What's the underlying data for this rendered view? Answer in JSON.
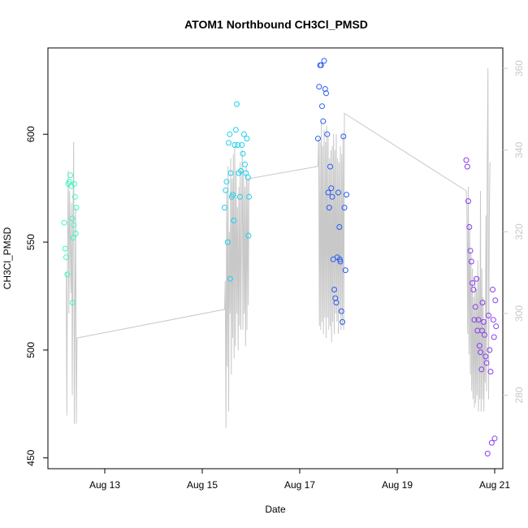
{
  "chart_data": {
    "type": "scatter",
    "title": "ATOM1 Northbound CH3Cl_PMSD",
    "xlabel": "Date",
    "ylabel": "CH3Cl_PMSD",
    "x_unit": "date",
    "xlim": [
      "2023-08-11T20:00",
      "2023-08-21T04:00"
    ],
    "ylim": [
      445,
      640
    ],
    "y2lim": [
      262,
      365
    ],
    "x_ticks": [
      {
        "value": "2023-08-13",
        "label": "Aug 13"
      },
      {
        "value": "2023-08-15",
        "label": "Aug 15"
      },
      {
        "value": "2023-08-17",
        "label": "Aug 17"
      },
      {
        "value": "2023-08-19",
        "label": "Aug 19"
      },
      {
        "value": "2023-08-21",
        "label": "Aug 21"
      }
    ],
    "y_ticks": [
      450,
      500,
      550,
      600
    ],
    "y2_ticks": [
      280,
      300,
      320,
      340,
      360
    ],
    "point_style": "open circles colored by time (cyan to purple)",
    "line_style": "gray line on secondary axis",
    "grid": false,
    "series": [
      {
        "color": "#3df7c3",
        "points": [
          {
            "x": "2023-08-12T04:00",
            "y": 559
          },
          {
            "x": "2023-08-12T04:30",
            "y": 547
          },
          {
            "x": "2023-08-12T05:00",
            "y": 543
          },
          {
            "x": "2023-08-12T05:30",
            "y": 535
          },
          {
            "x": "2023-08-12T06:00",
            "y": 577
          },
          {
            "x": "2023-08-12T06:30",
            "y": 578
          },
          {
            "x": "2023-08-12T07:00",
            "y": 581
          },
          {
            "x": "2023-08-12T07:30",
            "y": 576
          },
          {
            "x": "2023-08-12T08:00",
            "y": 561
          },
          {
            "x": "2023-08-12T08:20",
            "y": 552
          },
          {
            "x": "2023-08-12T08:40",
            "y": 558
          },
          {
            "x": "2023-08-12T09:00",
            "y": 577
          },
          {
            "x": "2023-08-12T09:20",
            "y": 571
          },
          {
            "x": "2023-08-12T09:40",
            "y": 554
          },
          {
            "x": "2023-08-12T10:00",
            "y": 566
          },
          {
            "x": "2023-08-12T08:10",
            "y": 522
          }
        ]
      },
      {
        "color": "#1ed0ee",
        "points": [
          {
            "x": "2023-08-15T11:00",
            "y": 566
          },
          {
            "x": "2023-08-15T11:30",
            "y": 574
          },
          {
            "x": "2023-08-15T12:00",
            "y": 578
          },
          {
            "x": "2023-08-15T12:30",
            "y": 550
          },
          {
            "x": "2023-08-15T13:00",
            "y": 596
          },
          {
            "x": "2023-08-15T13:30",
            "y": 600
          },
          {
            "x": "2023-08-15T14:00",
            "y": 582
          },
          {
            "x": "2023-08-15T14:30",
            "y": 571
          },
          {
            "x": "2023-08-15T15:00",
            "y": 572
          },
          {
            "x": "2023-08-15T15:30",
            "y": 560
          },
          {
            "x": "2023-08-15T16:00",
            "y": 595
          },
          {
            "x": "2023-08-15T16:30",
            "y": 602
          },
          {
            "x": "2023-08-15T17:00",
            "y": 614
          },
          {
            "x": "2023-08-15T17:30",
            "y": 595
          },
          {
            "x": "2023-08-15T18:00",
            "y": 582
          },
          {
            "x": "2023-08-15T18:30",
            "y": 571
          },
          {
            "x": "2023-08-15T19:00",
            "y": 583
          },
          {
            "x": "2023-08-15T19:30",
            "y": 595
          },
          {
            "x": "2023-08-15T20:00",
            "y": 591
          },
          {
            "x": "2023-08-15T20:30",
            "y": 600
          },
          {
            "x": "2023-08-15T21:00",
            "y": 586
          },
          {
            "x": "2023-08-15T21:30",
            "y": 582
          },
          {
            "x": "2023-08-15T22:00",
            "y": 598
          },
          {
            "x": "2023-08-15T22:30",
            "y": 580
          },
          {
            "x": "2023-08-15T23:00",
            "y": 571
          },
          {
            "x": "2023-08-15T22:45",
            "y": 553
          },
          {
            "x": "2023-08-15T13:45",
            "y": 533
          }
        ]
      },
      {
        "color": "#2a5cf0",
        "points": [
          {
            "x": "2023-08-17T09:00",
            "y": 598
          },
          {
            "x": "2023-08-17T09:30",
            "y": 622
          },
          {
            "x": "2023-08-17T10:00",
            "y": 632
          },
          {
            "x": "2023-08-17T10:30",
            "y": 632
          },
          {
            "x": "2023-08-17T11:00",
            "y": 613
          },
          {
            "x": "2023-08-17T11:30",
            "y": 606
          },
          {
            "x": "2023-08-17T12:00",
            "y": 634
          },
          {
            "x": "2023-08-17T12:30",
            "y": 621
          },
          {
            "x": "2023-08-17T13:00",
            "y": 619
          },
          {
            "x": "2023-08-17T13:30",
            "y": 600
          },
          {
            "x": "2023-08-17T14:00",
            "y": 573
          },
          {
            "x": "2023-08-17T14:30",
            "y": 566
          },
          {
            "x": "2023-08-17T15:00",
            "y": 585
          },
          {
            "x": "2023-08-17T15:30",
            "y": 575
          },
          {
            "x": "2023-08-17T16:00",
            "y": 571
          },
          {
            "x": "2023-08-17T16:30",
            "y": 542
          },
          {
            "x": "2023-08-17T17:00",
            "y": 528
          },
          {
            "x": "2023-08-17T17:30",
            "y": 524
          },
          {
            "x": "2023-08-17T18:00",
            "y": 522
          },
          {
            "x": "2023-08-17T18:30",
            "y": 543
          },
          {
            "x": "2023-08-17T19:00",
            "y": 573
          },
          {
            "x": "2023-08-17T19:30",
            "y": 557
          },
          {
            "x": "2023-08-17T20:00",
            "y": 541
          },
          {
            "x": "2023-08-17T20:30",
            "y": 518
          },
          {
            "x": "2023-08-17T21:00",
            "y": 513
          },
          {
            "x": "2023-08-17T21:30",
            "y": 599
          },
          {
            "x": "2023-08-17T22:00",
            "y": 566
          },
          {
            "x": "2023-08-17T22:30",
            "y": 537
          },
          {
            "x": "2023-08-17T23:00",
            "y": 572
          },
          {
            "x": "2023-08-17T19:45",
            "y": 542
          }
        ]
      },
      {
        "color": "#8a3cf0",
        "points": [
          {
            "x": "2023-08-20T10:00",
            "y": 588
          },
          {
            "x": "2023-08-20T10:30",
            "y": 585
          },
          {
            "x": "2023-08-20T11:00",
            "y": 569
          },
          {
            "x": "2023-08-20T11:30",
            "y": 557
          },
          {
            "x": "2023-08-20T12:00",
            "y": 546
          },
          {
            "x": "2023-08-20T12:30",
            "y": 541
          },
          {
            "x": "2023-08-20T13:00",
            "y": 531
          },
          {
            "x": "2023-08-20T13:30",
            "y": 528
          },
          {
            "x": "2023-08-20T14:00",
            "y": 514
          },
          {
            "x": "2023-08-20T14:30",
            "y": 520
          },
          {
            "x": "2023-08-20T15:00",
            "y": 533
          },
          {
            "x": "2023-08-20T15:30",
            "y": 509
          },
          {
            "x": "2023-08-20T16:00",
            "y": 514
          },
          {
            "x": "2023-08-20T16:30",
            "y": 502
          },
          {
            "x": "2023-08-20T17:00",
            "y": 499
          },
          {
            "x": "2023-08-20T17:30",
            "y": 491
          },
          {
            "x": "2023-08-20T18:00",
            "y": 522
          },
          {
            "x": "2023-08-20T18:30",
            "y": 513
          },
          {
            "x": "2023-08-20T19:00",
            "y": 507
          },
          {
            "x": "2023-08-20T19:30",
            "y": 497
          },
          {
            "x": "2023-08-20T20:00",
            "y": 494
          },
          {
            "x": "2023-08-20T20:30",
            "y": 452
          },
          {
            "x": "2023-08-20T21:00",
            "y": 516
          },
          {
            "x": "2023-08-20T21:30",
            "y": 500
          },
          {
            "x": "2023-08-20T22:00",
            "y": 490
          },
          {
            "x": "2023-08-20T22:30",
            "y": 457
          },
          {
            "x": "2023-08-20T23:00",
            "y": 528
          },
          {
            "x": "2023-08-20T23:20",
            "y": 514
          },
          {
            "x": "2023-08-20T23:40",
            "y": 506
          },
          {
            "x": "2023-08-21T00:00",
            "y": 459
          },
          {
            "x": "2023-08-21T00:20",
            "y": 523
          },
          {
            "x": "2023-08-21T00:40",
            "y": 511
          },
          {
            "x": "2023-08-20T17:45",
            "y": 509
          }
        ]
      }
    ],
    "secondary_line": {
      "color": "#c8c8c8",
      "points": [
        {
          "x": "2023-08-12T05:00",
          "y": 310
        },
        {
          "x": "2023-08-12T05:20",
          "y": 275
        },
        {
          "x": "2023-08-12T05:40",
          "y": 318
        },
        {
          "x": "2023-08-12T06:00",
          "y": 335
        },
        {
          "x": "2023-08-12T06:20",
          "y": 300
        },
        {
          "x": "2023-08-12T06:40",
          "y": 330
        },
        {
          "x": "2023-08-12T07:00",
          "y": 318
        },
        {
          "x": "2023-08-12T07:20",
          "y": 305
        },
        {
          "x": "2023-08-12T07:40",
          "y": 327
        },
        {
          "x": "2023-08-12T08:00",
          "y": 280
        },
        {
          "x": "2023-08-12T08:20",
          "y": 322
        },
        {
          "x": "2023-08-12T08:40",
          "y": 342
        },
        {
          "x": "2023-08-12T09:00",
          "y": 273
        },
        {
          "x": "2023-08-12T09:20",
          "y": 300
        },
        {
          "x": "2023-08-12T09:40",
          "y": 326
        },
        {
          "x": "2023-08-12T10:00",
          "y": 273
        },
        {
          "x": "2023-08-12T10:20",
          "y": 294
        },
        {
          "x": "2023-08-15T11:00",
          "y": 301
        },
        {
          "x": "2023-08-15T11:20",
          "y": 308
        },
        {
          "x": "2023-08-15T11:40",
          "y": 272
        },
        {
          "x": "2023-08-15T12:00",
          "y": 330
        },
        {
          "x": "2023-08-15T12:20",
          "y": 287
        },
        {
          "x": "2023-08-15T12:40",
          "y": 336
        },
        {
          "x": "2023-08-15T13:00",
          "y": 276
        },
        {
          "x": "2023-08-15T13:20",
          "y": 320
        },
        {
          "x": "2023-08-15T13:40",
          "y": 300
        },
        {
          "x": "2023-08-15T14:00",
          "y": 338
        },
        {
          "x": "2023-08-15T14:20",
          "y": 285
        },
        {
          "x": "2023-08-15T14:40",
          "y": 333
        },
        {
          "x": "2023-08-15T15:00",
          "y": 294
        },
        {
          "x": "2023-08-15T15:20",
          "y": 339
        },
        {
          "x": "2023-08-15T15:40",
          "y": 289
        },
        {
          "x": "2023-08-15T16:00",
          "y": 341
        },
        {
          "x": "2023-08-15T16:20",
          "y": 292
        },
        {
          "x": "2023-08-15T16:40",
          "y": 335
        },
        {
          "x": "2023-08-15T17:00",
          "y": 300
        },
        {
          "x": "2023-08-15T17:20",
          "y": 326
        },
        {
          "x": "2023-08-15T17:40",
          "y": 291
        },
        {
          "x": "2023-08-15T18:00",
          "y": 331
        },
        {
          "x": "2023-08-15T18:20",
          "y": 297
        },
        {
          "x": "2023-08-15T18:40",
          "y": 337
        },
        {
          "x": "2023-08-15T19:00",
          "y": 296
        },
        {
          "x": "2023-08-15T19:20",
          "y": 320
        },
        {
          "x": "2023-08-15T19:40",
          "y": 340
        },
        {
          "x": "2023-08-15T20:00",
          "y": 296
        },
        {
          "x": "2023-08-15T20:20",
          "y": 334
        },
        {
          "x": "2023-08-15T20:40",
          "y": 300
        },
        {
          "x": "2023-08-15T21:00",
          "y": 331
        },
        {
          "x": "2023-08-15T21:20",
          "y": 292
        },
        {
          "x": "2023-08-15T21:40",
          "y": 336
        },
        {
          "x": "2023-08-15T22:00",
          "y": 296
        },
        {
          "x": "2023-08-15T22:20",
          "y": 333
        },
        {
          "x": "2023-08-15T22:40",
          "y": 302
        },
        {
          "x": "2023-08-15T23:00",
          "y": 333
        },
        {
          "x": "2023-08-17T09:00",
          "y": 336
        },
        {
          "x": "2023-08-17T09:20",
          "y": 343
        },
        {
          "x": "2023-08-17T09:40",
          "y": 297
        },
        {
          "x": "2023-08-17T10:00",
          "y": 342
        },
        {
          "x": "2023-08-17T10:20",
          "y": 296
        },
        {
          "x": "2023-08-17T10:40",
          "y": 347
        },
        {
          "x": "2023-08-17T11:00",
          "y": 298
        },
        {
          "x": "2023-08-17T11:20",
          "y": 341
        },
        {
          "x": "2023-08-17T11:40",
          "y": 295
        },
        {
          "x": "2023-08-17T12:00",
          "y": 345
        },
        {
          "x": "2023-08-17T12:20",
          "y": 299
        },
        {
          "x": "2023-08-17T12:40",
          "y": 342
        },
        {
          "x": "2023-08-17T13:00",
          "y": 294
        },
        {
          "x": "2023-08-17T13:20",
          "y": 346
        },
        {
          "x": "2023-08-17T13:40",
          "y": 299
        },
        {
          "x": "2023-08-17T14:00",
          "y": 343
        },
        {
          "x": "2023-08-17T14:20",
          "y": 296
        },
        {
          "x": "2023-08-17T14:40",
          "y": 338
        },
        {
          "x": "2023-08-17T15:00",
          "y": 297
        },
        {
          "x": "2023-08-17T15:20",
          "y": 340
        },
        {
          "x": "2023-08-17T15:40",
          "y": 293
        },
        {
          "x": "2023-08-17T16:00",
          "y": 341
        },
        {
          "x": "2023-08-17T16:20",
          "y": 298
        },
        {
          "x": "2023-08-17T16:40",
          "y": 344
        },
        {
          "x": "2023-08-17T17:00",
          "y": 295
        },
        {
          "x": "2023-08-17T17:20",
          "y": 340
        },
        {
          "x": "2023-08-17T17:40",
          "y": 300
        },
        {
          "x": "2023-08-17T18:00",
          "y": 344
        },
        {
          "x": "2023-08-17T18:20",
          "y": 298
        },
        {
          "x": "2023-08-17T18:40",
          "y": 338
        },
        {
          "x": "2023-08-17T19:00",
          "y": 295
        },
        {
          "x": "2023-08-17T19:20",
          "y": 337
        },
        {
          "x": "2023-08-17T19:40",
          "y": 300
        },
        {
          "x": "2023-08-17T20:00",
          "y": 341
        },
        {
          "x": "2023-08-17T20:20",
          "y": 296
        },
        {
          "x": "2023-08-17T20:40",
          "y": 339
        },
        {
          "x": "2023-08-17T21:00",
          "y": 297
        },
        {
          "x": "2023-08-17T21:20",
          "y": 344
        },
        {
          "x": "2023-08-17T21:40",
          "y": 296
        },
        {
          "x": "2023-08-17T22:00",
          "y": 349
        },
        {
          "x": "2023-08-20T10:00",
          "y": 330
        },
        {
          "x": "2023-08-20T10:20",
          "y": 326
        },
        {
          "x": "2023-08-20T10:40",
          "y": 295
        },
        {
          "x": "2023-08-20T11:00",
          "y": 331
        },
        {
          "x": "2023-08-20T11:20",
          "y": 290
        },
        {
          "x": "2023-08-20T11:40",
          "y": 322
        },
        {
          "x": "2023-08-20T12:00",
          "y": 285
        },
        {
          "x": "2023-08-20T12:20",
          "y": 315
        },
        {
          "x": "2023-08-20T12:40",
          "y": 281
        },
        {
          "x": "2023-08-20T13:00",
          "y": 311
        },
        {
          "x": "2023-08-20T13:20",
          "y": 279
        },
        {
          "x": "2023-08-20T13:40",
          "y": 304
        },
        {
          "x": "2023-08-20T14:00",
          "y": 277
        },
        {
          "x": "2023-08-20T14:20",
          "y": 309
        },
        {
          "x": "2023-08-20T14:40",
          "y": 278
        },
        {
          "x": "2023-08-20T15:00",
          "y": 306
        },
        {
          "x": "2023-08-20T15:20",
          "y": 280
        },
        {
          "x": "2023-08-20T15:40",
          "y": 313
        },
        {
          "x": "2023-08-20T16:00",
          "y": 276
        },
        {
          "x": "2023-08-20T16:20",
          "y": 309
        },
        {
          "x": "2023-08-20T16:40",
          "y": 279
        },
        {
          "x": "2023-08-20T17:00",
          "y": 330
        },
        {
          "x": "2023-08-20T17:20",
          "y": 276
        },
        {
          "x": "2023-08-20T17:40",
          "y": 311
        },
        {
          "x": "2023-08-20T18:00",
          "y": 279
        },
        {
          "x": "2023-08-20T18:20",
          "y": 304
        },
        {
          "x": "2023-08-20T18:40",
          "y": 276
        },
        {
          "x": "2023-08-20T19:00",
          "y": 298
        },
        {
          "x": "2023-08-20T19:20",
          "y": 283
        },
        {
          "x": "2023-08-20T19:40",
          "y": 324
        },
        {
          "x": "2023-08-20T20:00",
          "y": 281
        },
        {
          "x": "2023-08-20T20:20",
          "y": 336
        },
        {
          "x": "2023-08-20T20:40",
          "y": 360
        },
        {
          "x": "2023-08-20T21:00",
          "y": 279
        },
        {
          "x": "2023-08-20T21:20",
          "y": 322
        },
        {
          "x": "2023-08-20T21:40",
          "y": 337
        }
      ]
    }
  }
}
